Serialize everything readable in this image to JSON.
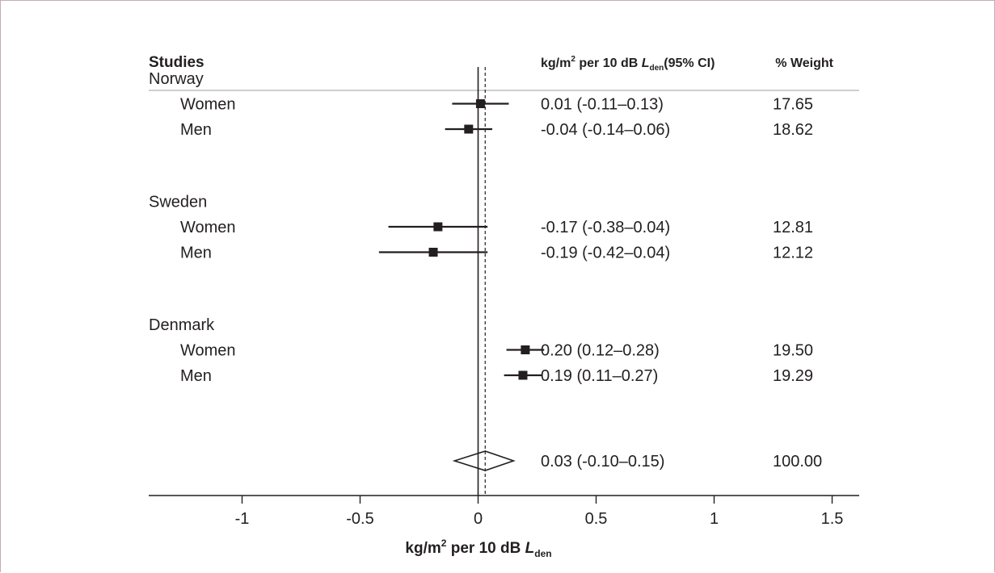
{
  "chart_data": {
    "type": "forest",
    "columns": {
      "studies": "Studies",
      "estimate": {
        "prefix": "kg/m",
        "sup": "2",
        "mid": " per 10 dB ",
        "italic": "L",
        "sub": "den",
        "suffix": "(95% CI)"
      },
      "weight": "% Weight"
    },
    "groups": [
      {
        "name": "Norway",
        "rows": [
          {
            "label": "Women",
            "estimate": 0.01,
            "ci_low": -0.11,
            "ci_high": 0.13,
            "text": "0.01 (-0.11–0.13)",
            "weight": "17.65"
          },
          {
            "label": "Men",
            "estimate": -0.04,
            "ci_low": -0.14,
            "ci_high": 0.06,
            "text": "-0.04 (-0.14–0.06)",
            "weight": "18.62"
          }
        ]
      },
      {
        "name": "Sweden",
        "rows": [
          {
            "label": "Women",
            "estimate": -0.17,
            "ci_low": -0.38,
            "ci_high": 0.04,
            "text": "-0.17 (-0.38–0.04)",
            "weight": "12.81"
          },
          {
            "label": "Men",
            "estimate": -0.19,
            "ci_low": -0.42,
            "ci_high": 0.04,
            "text": "-0.19 (-0.42–0.04)",
            "weight": "12.12"
          }
        ]
      },
      {
        "name": "Denmark",
        "rows": [
          {
            "label": "Women",
            "estimate": 0.2,
            "ci_low": 0.12,
            "ci_high": 0.28,
            "text": "0.20 (0.12–0.28)",
            "weight": "19.50"
          },
          {
            "label": "Men",
            "estimate": 0.19,
            "ci_low": 0.11,
            "ci_high": 0.27,
            "text": "0.19 (0.11–0.27)",
            "weight": "19.29"
          }
        ]
      }
    ],
    "overall": {
      "estimate": 0.03,
      "ci_low": -0.1,
      "ci_high": 0.15,
      "text": "0.03 (-0.10–0.15)",
      "weight": "100.00"
    },
    "x_ticks": [
      -1,
      -0.5,
      0,
      0.5,
      1,
      1.5
    ],
    "x_tick_labels": [
      "-1",
      "-0.5",
      "0",
      "0.5",
      "1",
      "1.5"
    ],
    "xlim": [
      -1,
      1.5
    ],
    "xlabel": {
      "prefix": "kg/m",
      "sup": "2",
      "mid": "  per 10 dB ",
      "italic": "L",
      "sub": "den"
    },
    "reference_line": 0,
    "overall_line": 0.03,
    "colors": {
      "marker": "#231f20",
      "text": "#231f20",
      "frame": "#c9a9b5",
      "rule": "#231f20",
      "header_rule": "#bfbfbf"
    }
  }
}
